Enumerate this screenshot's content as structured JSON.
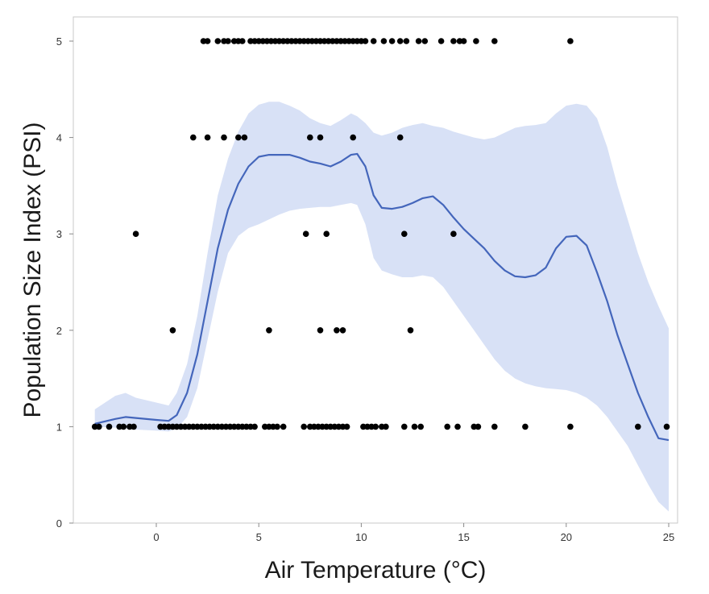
{
  "chart_data": {
    "type": "scatter",
    "title": "",
    "xlabel": "Air Temperature (°C)",
    "ylabel": "Population Size Index (PSI)",
    "xlim": [
      -4,
      26
    ],
    "ylim": [
      0,
      5.25
    ],
    "xticks": [
      0,
      5,
      10,
      15,
      20,
      25
    ],
    "yticks": [
      0,
      1,
      2,
      3,
      4,
      5
    ],
    "grid": false,
    "legend": "none",
    "colors": {
      "points": "#000000",
      "smoother": "#4466bb",
      "band": "#d8e1f6",
      "frame": "#c8c8c8"
    },
    "points": [
      [
        -3.0,
        1
      ],
      [
        -2.8,
        1
      ],
      [
        -2.3,
        1
      ],
      [
        -1.8,
        1
      ],
      [
        -1.6,
        1
      ],
      [
        -1.3,
        1
      ],
      [
        -1.1,
        1
      ],
      [
        0.2,
        1
      ],
      [
        0.4,
        1
      ],
      [
        0.6,
        1
      ],
      [
        0.8,
        1
      ],
      [
        1.0,
        1
      ],
      [
        1.2,
        1
      ],
      [
        1.4,
        1
      ],
      [
        1.6,
        1
      ],
      [
        1.8,
        1
      ],
      [
        2.0,
        1
      ],
      [
        2.2,
        1
      ],
      [
        2.4,
        1
      ],
      [
        2.6,
        1
      ],
      [
        2.8,
        1
      ],
      [
        3.0,
        1
      ],
      [
        3.2,
        1
      ],
      [
        3.4,
        1
      ],
      [
        3.6,
        1
      ],
      [
        3.8,
        1
      ],
      [
        4.0,
        1
      ],
      [
        4.2,
        1
      ],
      [
        4.4,
        1
      ],
      [
        4.6,
        1
      ],
      [
        4.8,
        1
      ],
      [
        5.3,
        1
      ],
      [
        5.5,
        1
      ],
      [
        5.7,
        1
      ],
      [
        5.9,
        1
      ],
      [
        6.2,
        1
      ],
      [
        7.2,
        1
      ],
      [
        7.5,
        1
      ],
      [
        7.7,
        1
      ],
      [
        7.9,
        1
      ],
      [
        8.1,
        1
      ],
      [
        8.3,
        1
      ],
      [
        8.5,
        1
      ],
      [
        8.7,
        1
      ],
      [
        8.9,
        1
      ],
      [
        9.1,
        1
      ],
      [
        9.3,
        1
      ],
      [
        10.1,
        1
      ],
      [
        10.3,
        1
      ],
      [
        10.5,
        1
      ],
      [
        10.7,
        1
      ],
      [
        11.0,
        1
      ],
      [
        11.2,
        1
      ],
      [
        12.1,
        1
      ],
      [
        12.6,
        1
      ],
      [
        12.9,
        1
      ],
      [
        14.2,
        1
      ],
      [
        14.7,
        1
      ],
      [
        15.5,
        1
      ],
      [
        15.7,
        1
      ],
      [
        16.5,
        1
      ],
      [
        18.0,
        1
      ],
      [
        20.2,
        1
      ],
      [
        23.5,
        1
      ],
      [
        24.9,
        1
      ],
      [
        0.8,
        2
      ],
      [
        5.5,
        2
      ],
      [
        8.0,
        2
      ],
      [
        8.8,
        2
      ],
      [
        9.1,
        2
      ],
      [
        12.4,
        2
      ],
      [
        -1.0,
        3
      ],
      [
        7.3,
        3
      ],
      [
        8.3,
        3
      ],
      [
        12.1,
        3
      ],
      [
        14.5,
        3
      ],
      [
        1.8,
        4
      ],
      [
        2.5,
        4
      ],
      [
        3.3,
        4
      ],
      [
        4.0,
        4
      ],
      [
        4.3,
        4
      ],
      [
        7.5,
        4
      ],
      [
        8.0,
        4
      ],
      [
        9.6,
        4
      ],
      [
        11.9,
        4
      ],
      [
        2.3,
        5
      ],
      [
        2.5,
        5
      ],
      [
        3.0,
        5
      ],
      [
        3.3,
        5
      ],
      [
        3.5,
        5
      ],
      [
        3.8,
        5
      ],
      [
        4.0,
        5
      ],
      [
        4.2,
        5
      ],
      [
        4.6,
        5
      ],
      [
        4.8,
        5
      ],
      [
        5.0,
        5
      ],
      [
        5.2,
        5
      ],
      [
        5.4,
        5
      ],
      [
        5.6,
        5
      ],
      [
        5.8,
        5
      ],
      [
        6.0,
        5
      ],
      [
        6.2,
        5
      ],
      [
        6.4,
        5
      ],
      [
        6.6,
        5
      ],
      [
        6.8,
        5
      ],
      [
        7.0,
        5
      ],
      [
        7.2,
        5
      ],
      [
        7.4,
        5
      ],
      [
        7.6,
        5
      ],
      [
        7.8,
        5
      ],
      [
        8.0,
        5
      ],
      [
        8.2,
        5
      ],
      [
        8.4,
        5
      ],
      [
        8.6,
        5
      ],
      [
        8.8,
        5
      ],
      [
        9.0,
        5
      ],
      [
        9.2,
        5
      ],
      [
        9.4,
        5
      ],
      [
        9.6,
        5
      ],
      [
        9.8,
        5
      ],
      [
        10.0,
        5
      ],
      [
        10.2,
        5
      ],
      [
        10.6,
        5
      ],
      [
        11.1,
        5
      ],
      [
        11.5,
        5
      ],
      [
        11.9,
        5
      ],
      [
        12.2,
        5
      ],
      [
        12.8,
        5
      ],
      [
        13.1,
        5
      ],
      [
        13.9,
        5
      ],
      [
        14.5,
        5
      ],
      [
        14.8,
        5
      ],
      [
        15.0,
        5
      ],
      [
        15.6,
        5
      ],
      [
        16.5,
        5
      ],
      [
        20.2,
        5
      ]
    ],
    "smoother": {
      "x": [
        -3.0,
        -2.0,
        -1.5,
        -1.0,
        0.0,
        0.6,
        1.0,
        1.5,
        2.0,
        2.5,
        3.0,
        3.5,
        4.0,
        4.5,
        5.0,
        5.5,
        6.0,
        6.5,
        7.0,
        7.5,
        8.0,
        8.5,
        9.0,
        9.5,
        9.8,
        10.2,
        10.6,
        11.0,
        11.5,
        12.0,
        12.5,
        13.0,
        13.5,
        14.0,
        14.5,
        15.0,
        15.5,
        16.0,
        16.5,
        17.0,
        17.5,
        18.0,
        18.5,
        19.0,
        19.5,
        20.0,
        20.5,
        21.0,
        21.5,
        22.0,
        22.5,
        23.0,
        23.5,
        24.0,
        24.5,
        25.0
      ],
      "y": [
        1.03,
        1.08,
        1.1,
        1.09,
        1.07,
        1.06,
        1.12,
        1.35,
        1.75,
        2.3,
        2.85,
        3.25,
        3.52,
        3.7,
        3.8,
        3.82,
        3.82,
        3.82,
        3.79,
        3.75,
        3.73,
        3.7,
        3.75,
        3.82,
        3.83,
        3.7,
        3.4,
        3.27,
        3.26,
        3.28,
        3.32,
        3.37,
        3.39,
        3.3,
        3.17,
        3.05,
        2.95,
        2.85,
        2.72,
        2.62,
        2.56,
        2.55,
        2.57,
        2.65,
        2.85,
        2.97,
        2.98,
        2.88,
        2.6,
        2.3,
        1.95,
        1.65,
        1.35,
        1.1,
        0.88,
        0.86
      ],
      "lo": [
        1.0,
        0.99,
        0.98,
        0.97,
        0.96,
        0.95,
        0.98,
        1.1,
        1.4,
        1.9,
        2.4,
        2.8,
        2.98,
        3.06,
        3.1,
        3.15,
        3.2,
        3.24,
        3.26,
        3.27,
        3.28,
        3.28,
        3.3,
        3.32,
        3.3,
        3.1,
        2.75,
        2.62,
        2.58,
        2.55,
        2.55,
        2.57,
        2.55,
        2.45,
        2.3,
        2.15,
        2.0,
        1.85,
        1.7,
        1.58,
        1.5,
        1.45,
        1.42,
        1.4,
        1.39,
        1.38,
        1.35,
        1.3,
        1.22,
        1.1,
        0.95,
        0.8,
        0.6,
        0.4,
        0.22,
        0.12
      ],
      "hi": [
        1.18,
        1.32,
        1.35,
        1.3,
        1.25,
        1.22,
        1.35,
        1.65,
        2.15,
        2.8,
        3.4,
        3.78,
        4.06,
        4.25,
        4.34,
        4.37,
        4.37,
        4.33,
        4.28,
        4.2,
        4.15,
        4.12,
        4.18,
        4.25,
        4.22,
        4.15,
        4.05,
        4.02,
        4.05,
        4.1,
        4.13,
        4.15,
        4.12,
        4.1,
        4.06,
        4.03,
        4.0,
        3.98,
        4.0,
        4.05,
        4.1,
        4.12,
        4.13,
        4.15,
        4.25,
        4.33,
        4.35,
        4.33,
        4.2,
        3.9,
        3.5,
        3.15,
        2.8,
        2.5,
        2.25,
        2.02
      ]
    }
  }
}
